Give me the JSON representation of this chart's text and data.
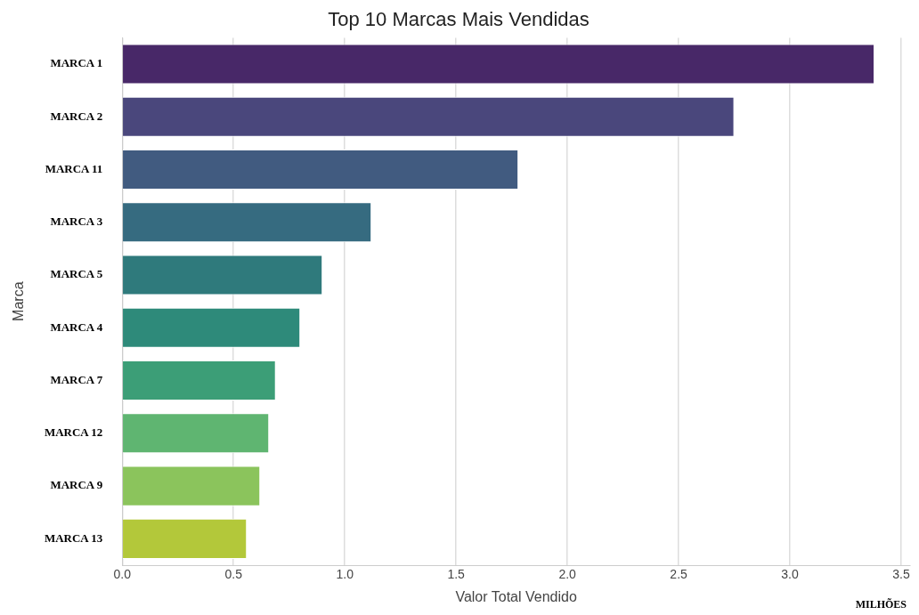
{
  "chart_data": {
    "type": "bar",
    "orientation": "horizontal",
    "title": "Top 10 Marcas Mais Vendidas",
    "xlabel": "Valor Total Vendido",
    "ylabel": "Marca",
    "categories": [
      "MARCA 1",
      "MARCA 2",
      "MARCA 11",
      "MARCA 3",
      "MARCA 5",
      "MARCA 4",
      "MARCA 7",
      "MARCA 12",
      "MARCA 9",
      "MARCA 13"
    ],
    "values": [
      3.38,
      2.75,
      1.78,
      1.12,
      0.9,
      0.8,
      0.69,
      0.66,
      0.62,
      0.56
    ],
    "colors": [
      "#482868",
      "#4a477c",
      "#415b80",
      "#366b80",
      "#2f7a7c",
      "#2e8a7a",
      "#3c9e77",
      "#5fb571",
      "#8bc45c",
      "#b3c83a"
    ],
    "xlim": [
      0,
      3.54
    ],
    "xticks": [
      {
        "value": 0,
        "label": "0.0"
      },
      {
        "value": 0.5,
        "label": "0.5"
      },
      {
        "value": 1,
        "label": "1.0"
      },
      {
        "value": 1.5,
        "label": "1.5"
      },
      {
        "value": 2,
        "label": "2.0"
      },
      {
        "value": 2.5,
        "label": "2.5"
      },
      {
        "value": 3,
        "label": "3.0"
      },
      {
        "value": 3.5,
        "label": "3.5"
      }
    ],
    "grid": "x",
    "legend": false,
    "annotations": [
      "MILHÕES"
    ]
  }
}
